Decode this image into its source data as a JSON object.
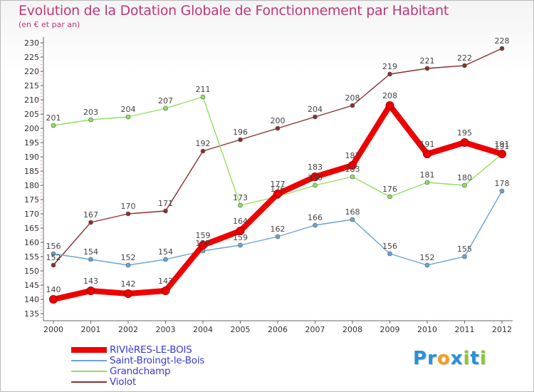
{
  "header": {
    "title": "Evolution de la Dotation Globale de Fonctionnement par Habitant",
    "subtitle": "(en € et par an)"
  },
  "chart_data": {
    "type": "line",
    "title": "Evolution de la Dotation Globale de Fonctionnement par Habitant",
    "subtitle": "(en € et par an)",
    "xlabel": "",
    "ylabel": "",
    "categories": [
      "2000",
      "2001",
      "2002",
      "2003",
      "2004",
      "2005",
      "2006",
      "2007",
      "2008",
      "2009",
      "2010",
      "2011",
      "2012"
    ],
    "ylim": [
      135,
      230
    ],
    "ytick_step": 5,
    "grid": false,
    "legend_position": "bottom-left",
    "series": [
      {
        "name": "RIVIèRES-LE-BOIS",
        "color": "#ee0000",
        "emphasis": true,
        "values": [
          140,
          143,
          142,
          143,
          159,
          164,
          177,
          183,
          187,
          208,
          191,
          195,
          191
        ]
      },
      {
        "name": "Saint-Broingt-le-Bois",
        "color": "#6aa4d8",
        "values": [
          156,
          154,
          152,
          154,
          157,
          159,
          162,
          166,
          168,
          156,
          152,
          155,
          178
        ]
      },
      {
        "name": "Grandchamp",
        "color": "#8fe060",
        "values": [
          201,
          203,
          204,
          207,
          211,
          173,
          176,
          180,
          183,
          176,
          181,
          180,
          191
        ]
      },
      {
        "name": "Violot",
        "color": "#8a3030",
        "values": [
          152,
          167,
          170,
          171,
          192,
          196,
          200,
          204,
          208,
          219,
          221,
          222,
          228
        ]
      }
    ]
  },
  "brand": {
    "letters": [
      "P",
      "r",
      "o",
      "x",
      "i",
      "t",
      "i"
    ],
    "colors": [
      "#2a8fd8",
      "#2a8fd8",
      "#f0a020",
      "#2a8fd8",
      "#8ac832",
      "#2a8fd8",
      "#8ac832"
    ]
  }
}
